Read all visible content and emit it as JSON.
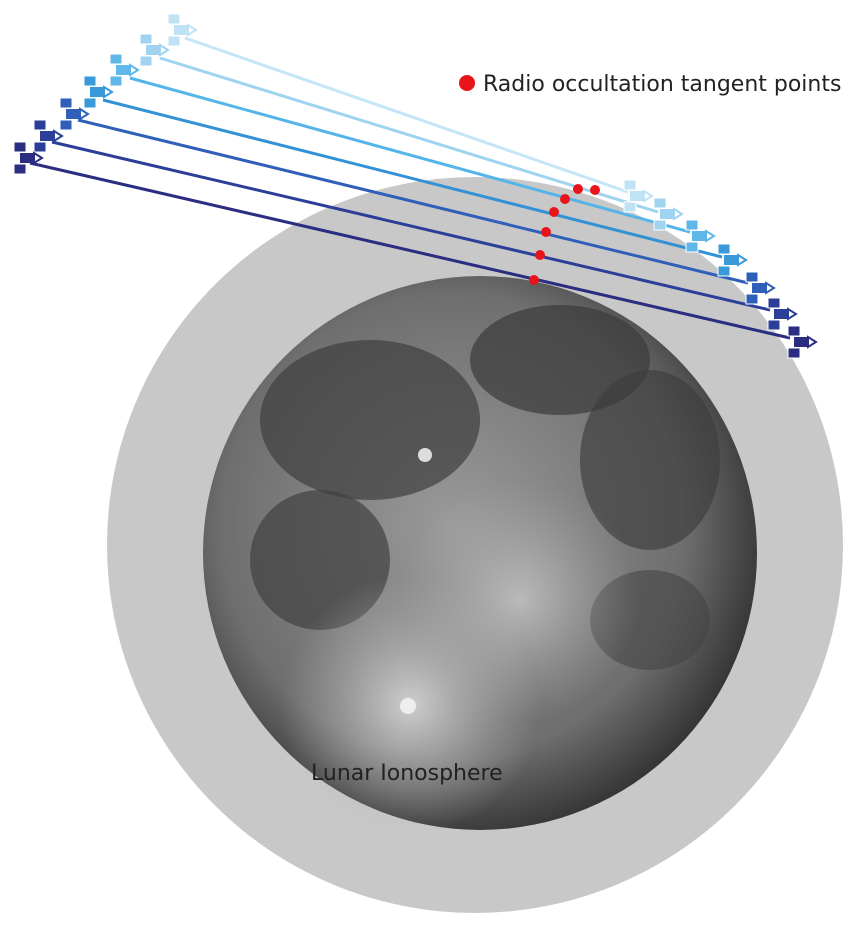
{
  "legend": {
    "label": "Radio occultation tangent points"
  },
  "region_label": "Lunar Ionosphere"
}
